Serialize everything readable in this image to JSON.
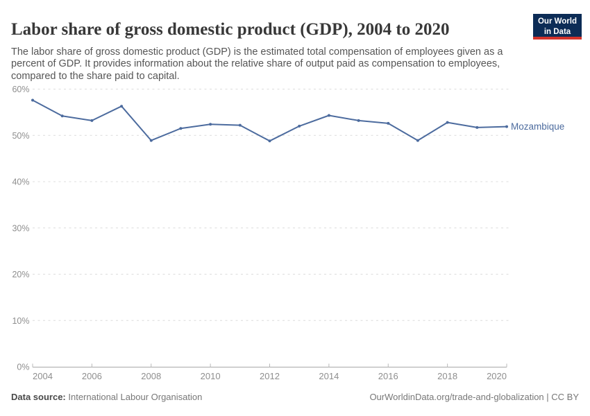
{
  "header": {
    "title": "Labor share of gross domestic product (GDP), 2004 to 2020",
    "subtitle": "The labor share of gross domestic product (GDP) is the estimated total compensation of employees given as a percent of GDP. It provides information about the relative share of output paid as compensation to employees, compared to the share paid to capital.",
    "logo": {
      "line1": "Our World",
      "line2": "in Data",
      "bg_color": "#0C2C56",
      "accent_color": "#D4342C"
    }
  },
  "chart_data": {
    "type": "line",
    "title": "Labor share of gross domestic product (GDP), 2004 to 2020",
    "xlabel": "",
    "ylabel": "",
    "x": [
      2004,
      2005,
      2006,
      2007,
      2008,
      2009,
      2010,
      2011,
      2012,
      2013,
      2014,
      2015,
      2016,
      2017,
      2018,
      2019,
      2020
    ],
    "series": [
      {
        "name": "Mozambique",
        "color": "#4C6B9E",
        "values": [
          57.6,
          54.2,
          53.2,
          56.3,
          48.9,
          51.5,
          52.4,
          52.2,
          48.8,
          52.0,
          54.3,
          53.2,
          52.6,
          48.9,
          52.8,
          51.7,
          51.9
        ]
      }
    ],
    "xlim": [
      2004,
      2020
    ],
    "ylim": [
      0,
      60
    ],
    "x_ticks": [
      2004,
      2006,
      2008,
      2010,
      2012,
      2014,
      2016,
      2018,
      2020
    ],
    "y_ticks": [
      0,
      10,
      20,
      30,
      40,
      50,
      60
    ],
    "y_tick_suffix": "%",
    "grid": "horizontal-dashed",
    "legend": "entity-label-at-line-end"
  },
  "footer": {
    "datasource_label": "Data source:",
    "datasource_value": "International Labour Organisation",
    "credit": "OurWorldinData.org/trade-and-globalization | CC BY"
  }
}
